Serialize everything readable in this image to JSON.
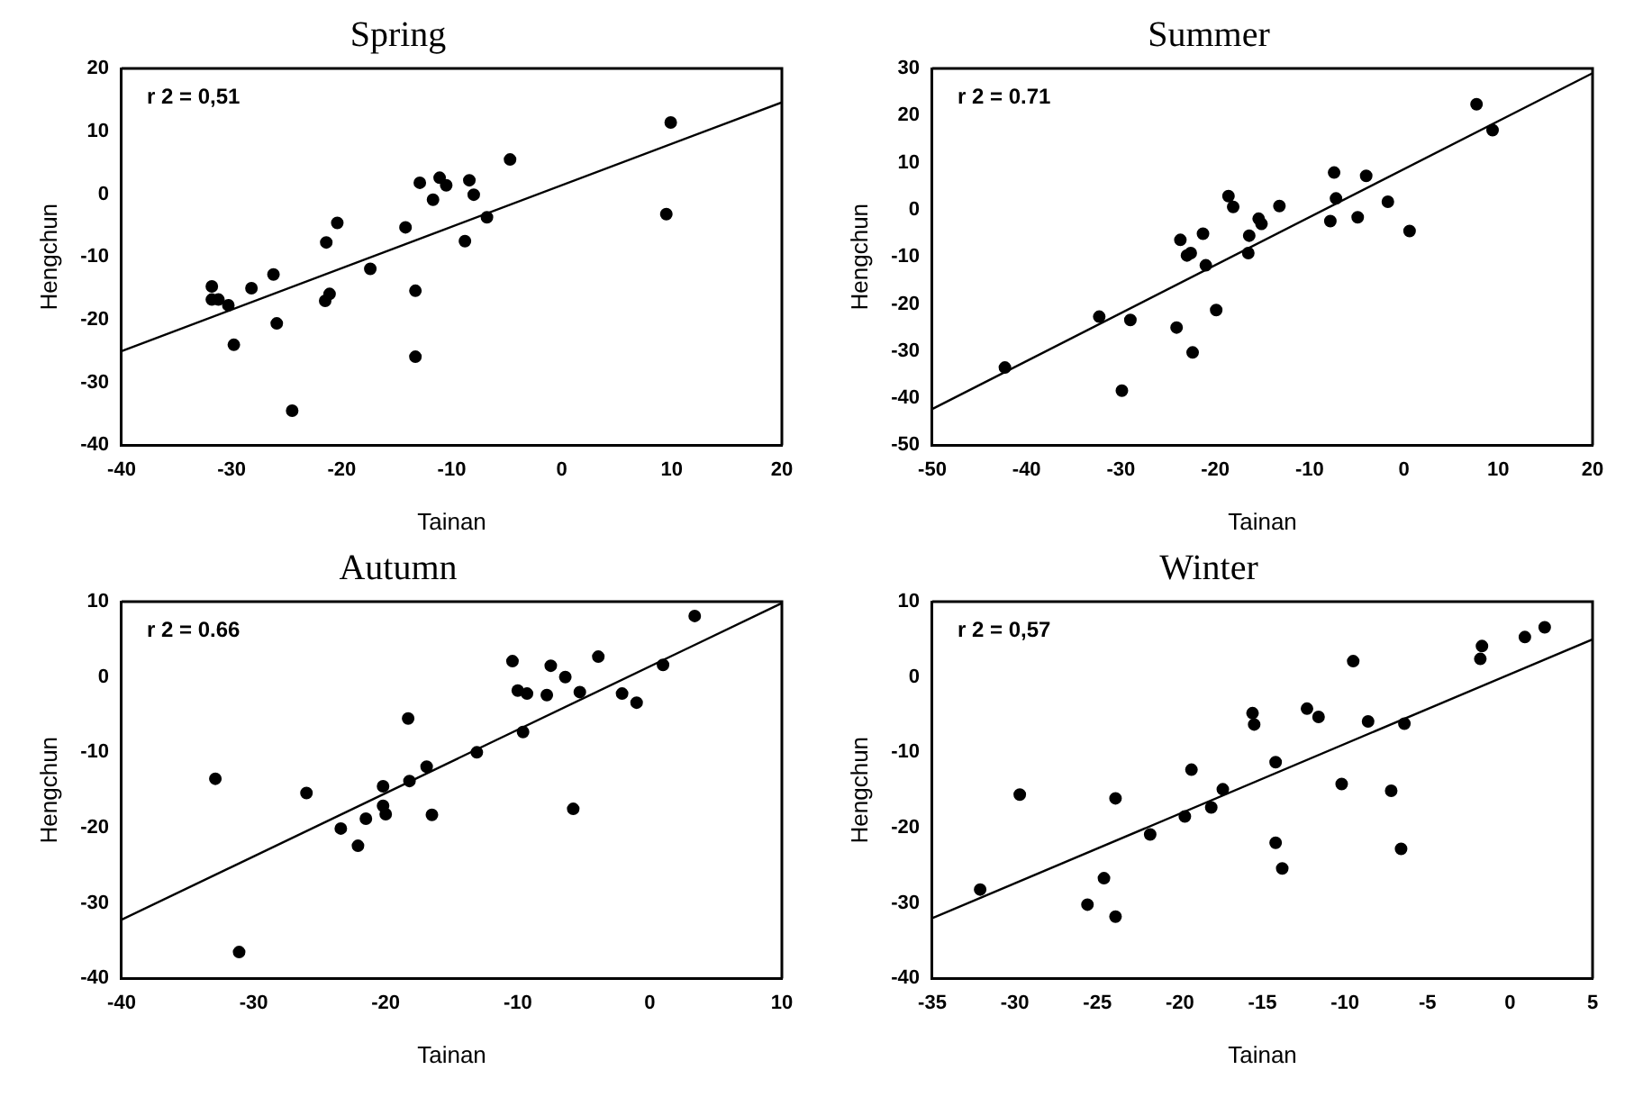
{
  "chart_data": [
    {
      "type": "scatter",
      "title": "Spring",
      "xlabel": "Tainan",
      "ylabel": "Hengchun",
      "annotations": [
        "r 2 = 0,51"
      ],
      "xlim": [
        -40,
        20
      ],
      "xticks": [
        -40,
        -30,
        -20,
        -10,
        0,
        10,
        20
      ],
      "ylim": [
        -40,
        20
      ],
      "yticks": [
        -40,
        -30,
        -20,
        -10,
        0,
        10,
        20
      ],
      "grid": false,
      "legend": false,
      "series": [
        {
          "color": "#000000",
          "marker": "circle",
          "x": [
            -31.8,
            -31.8,
            -31.2,
            -30.3,
            -29.8,
            -28.2,
            -26.2,
            -25.9,
            -24.5,
            -21.4,
            -21.5,
            -21.1,
            -20.4,
            -17.4,
            -14.2,
            -13.3,
            -13.3,
            -12.9,
            -11.7,
            -11.1,
            -10.5,
            -8.8,
            -8.4,
            -8,
            -6.8,
            -4.7,
            9.5,
            9.9
          ],
          "values": [
            -14.7,
            -16.8,
            -16.8,
            -17.7,
            -24,
            -15,
            -12.8,
            -20.6,
            -34.5,
            -7.7,
            -17,
            -15.9,
            -4.6,
            -11.9,
            -5.3,
            -15.4,
            -25.9,
            1.8,
            -0.9,
            2.6,
            1.4,
            -7.5,
            2.2,
            -0.1,
            -3.7,
            5.5,
            -3.2,
            11.4
          ]
        },
        {
          "type": "line",
          "color": "#000000",
          "marker": "none",
          "x": [
            -40,
            20
          ],
          "values": [
            -25,
            14.6
          ]
        }
      ]
    },
    {
      "type": "scatter",
      "title": "Summer",
      "xlabel": "Tainan",
      "ylabel": "Hengchun",
      "annotations": [
        "r 2 = 0.71"
      ],
      "xlim": [
        -50,
        20
      ],
      "xticks": [
        -50,
        -40,
        -30,
        -20,
        -10,
        0,
        10,
        20
      ],
      "ylim": [
        -50,
        30
      ],
      "yticks": [
        -50,
        -40,
        -30,
        -20,
        -10,
        0,
        10,
        20,
        30
      ],
      "grid": false,
      "legend": false,
      "series": [
        {
          "color": "#000000",
          "marker": "circle",
          "x": [
            -42.3,
            -32.3,
            -29,
            -29.9,
            -24.1,
            -22.4,
            -23.7,
            -23,
            -22.6,
            -21.3,
            -21,
            -19.9,
            -18.6,
            -18.1,
            -16.5,
            -16.4,
            -15.4,
            -15.1,
            -13.2,
            -7.8,
            -7.4,
            -7.2,
            -4.9,
            -4,
            -1.7,
            0.6,
            7.7,
            9.4
          ],
          "values": [
            -33.5,
            -22.7,
            -23.4,
            -38.4,
            -25,
            -30.3,
            -6.4,
            -9.7,
            -9.2,
            -5.1,
            -11.8,
            -21.3,
            2.9,
            0.6,
            -9.2,
            -5.5,
            -1.9,
            -3,
            0.8,
            -2.4,
            7.9,
            2.4,
            -1.6,
            7.2,
            1.7,
            -4.5,
            22.4,
            16.9
          ]
        },
        {
          "type": "line",
          "color": "#000000",
          "marker": "none",
          "x": [
            -50,
            20
          ],
          "values": [
            -42.3,
            29
          ]
        }
      ]
    },
    {
      "type": "scatter",
      "title": "Autumn",
      "xlabel": "Tainan",
      "ylabel": "Hengchun",
      "annotations": [
        "r 2 = 0.66"
      ],
      "xlim": [
        -40,
        10
      ],
      "xticks": [
        -40,
        -30,
        -20,
        -10,
        0,
        10
      ],
      "ylim": [
        -40,
        10
      ],
      "yticks": [
        -40,
        -30,
        -20,
        -10,
        0,
        10
      ],
      "grid": false,
      "legend": false,
      "series": [
        {
          "color": "#000000",
          "marker": "circle",
          "x": [
            -32.9,
            -31.1,
            -26,
            -23.4,
            -22.1,
            -21.5,
            -20.2,
            -20.2,
            -20,
            -18.3,
            -18.2,
            -16.9,
            -16.5,
            -13.1,
            -10.4,
            -10,
            -9.3,
            -9.6,
            -7.8,
            -7.5,
            -6.4,
            -5.8,
            -5.3,
            -3.9,
            -2.1,
            -1,
            1,
            3.4
          ],
          "values": [
            -13.5,
            -36.5,
            -15.4,
            -20.1,
            -22.4,
            -18.8,
            -14.5,
            -17.1,
            -18.2,
            -5.5,
            -13.8,
            -11.9,
            -18.3,
            -10,
            2.1,
            -1.8,
            -2.2,
            -7.3,
            -2.4,
            1.5,
            0,
            -17.5,
            -2,
            2.7,
            -2.2,
            -3.4,
            1.6,
            8.1
          ]
        },
        {
          "type": "line",
          "color": "#000000",
          "marker": "none",
          "x": [
            -40,
            10
          ],
          "values": [
            -32.2,
            9.8
          ]
        }
      ]
    },
    {
      "type": "scatter",
      "title": "Winter",
      "xlabel": "Tainan",
      "ylabel": "Hengchun",
      "annotations": [
        "r 2 = 0,57"
      ],
      "xlim": [
        -35,
        5
      ],
      "xticks": [
        -35,
        -30,
        -25,
        -20,
        -15,
        -10,
        -5,
        0,
        5
      ],
      "ylim": [
        -40,
        10
      ],
      "yticks": [
        -40,
        -30,
        -20,
        -10,
        0,
        10
      ],
      "grid": false,
      "legend": false,
      "series": [
        {
          "color": "#000000",
          "marker": "circle",
          "x": [
            -32.1,
            -29.7,
            -25.6,
            -24.6,
            -23.9,
            -23.9,
            -21.8,
            -19.7,
            -19.3,
            -18.1,
            -17.4,
            -15.6,
            -15.5,
            -14.2,
            -13.8,
            -14.2,
            -12.3,
            -11.6,
            -10.2,
            -9.5,
            -8.6,
            -7.2,
            -6.6,
            -6.4,
            -1.7,
            -1.8,
            0.9,
            2.1
          ],
          "values": [
            -28.2,
            -15.6,
            -30.2,
            -26.7,
            -16.1,
            -31.8,
            -20.9,
            -18.5,
            -12.3,
            -17.3,
            -14.9,
            -4.8,
            -6.3,
            -22,
            -25.4,
            -11.3,
            -4.2,
            -5.3,
            -14.2,
            2.1,
            -5.9,
            -15.1,
            -22.8,
            -6.2,
            4.1,
            2.4,
            5.3,
            6.6
          ]
        },
        {
          "type": "line",
          "color": "#000000",
          "marker": "none",
          "x": [
            -35,
            5
          ],
          "values": [
            -32,
            5
          ]
        }
      ]
    }
  ]
}
